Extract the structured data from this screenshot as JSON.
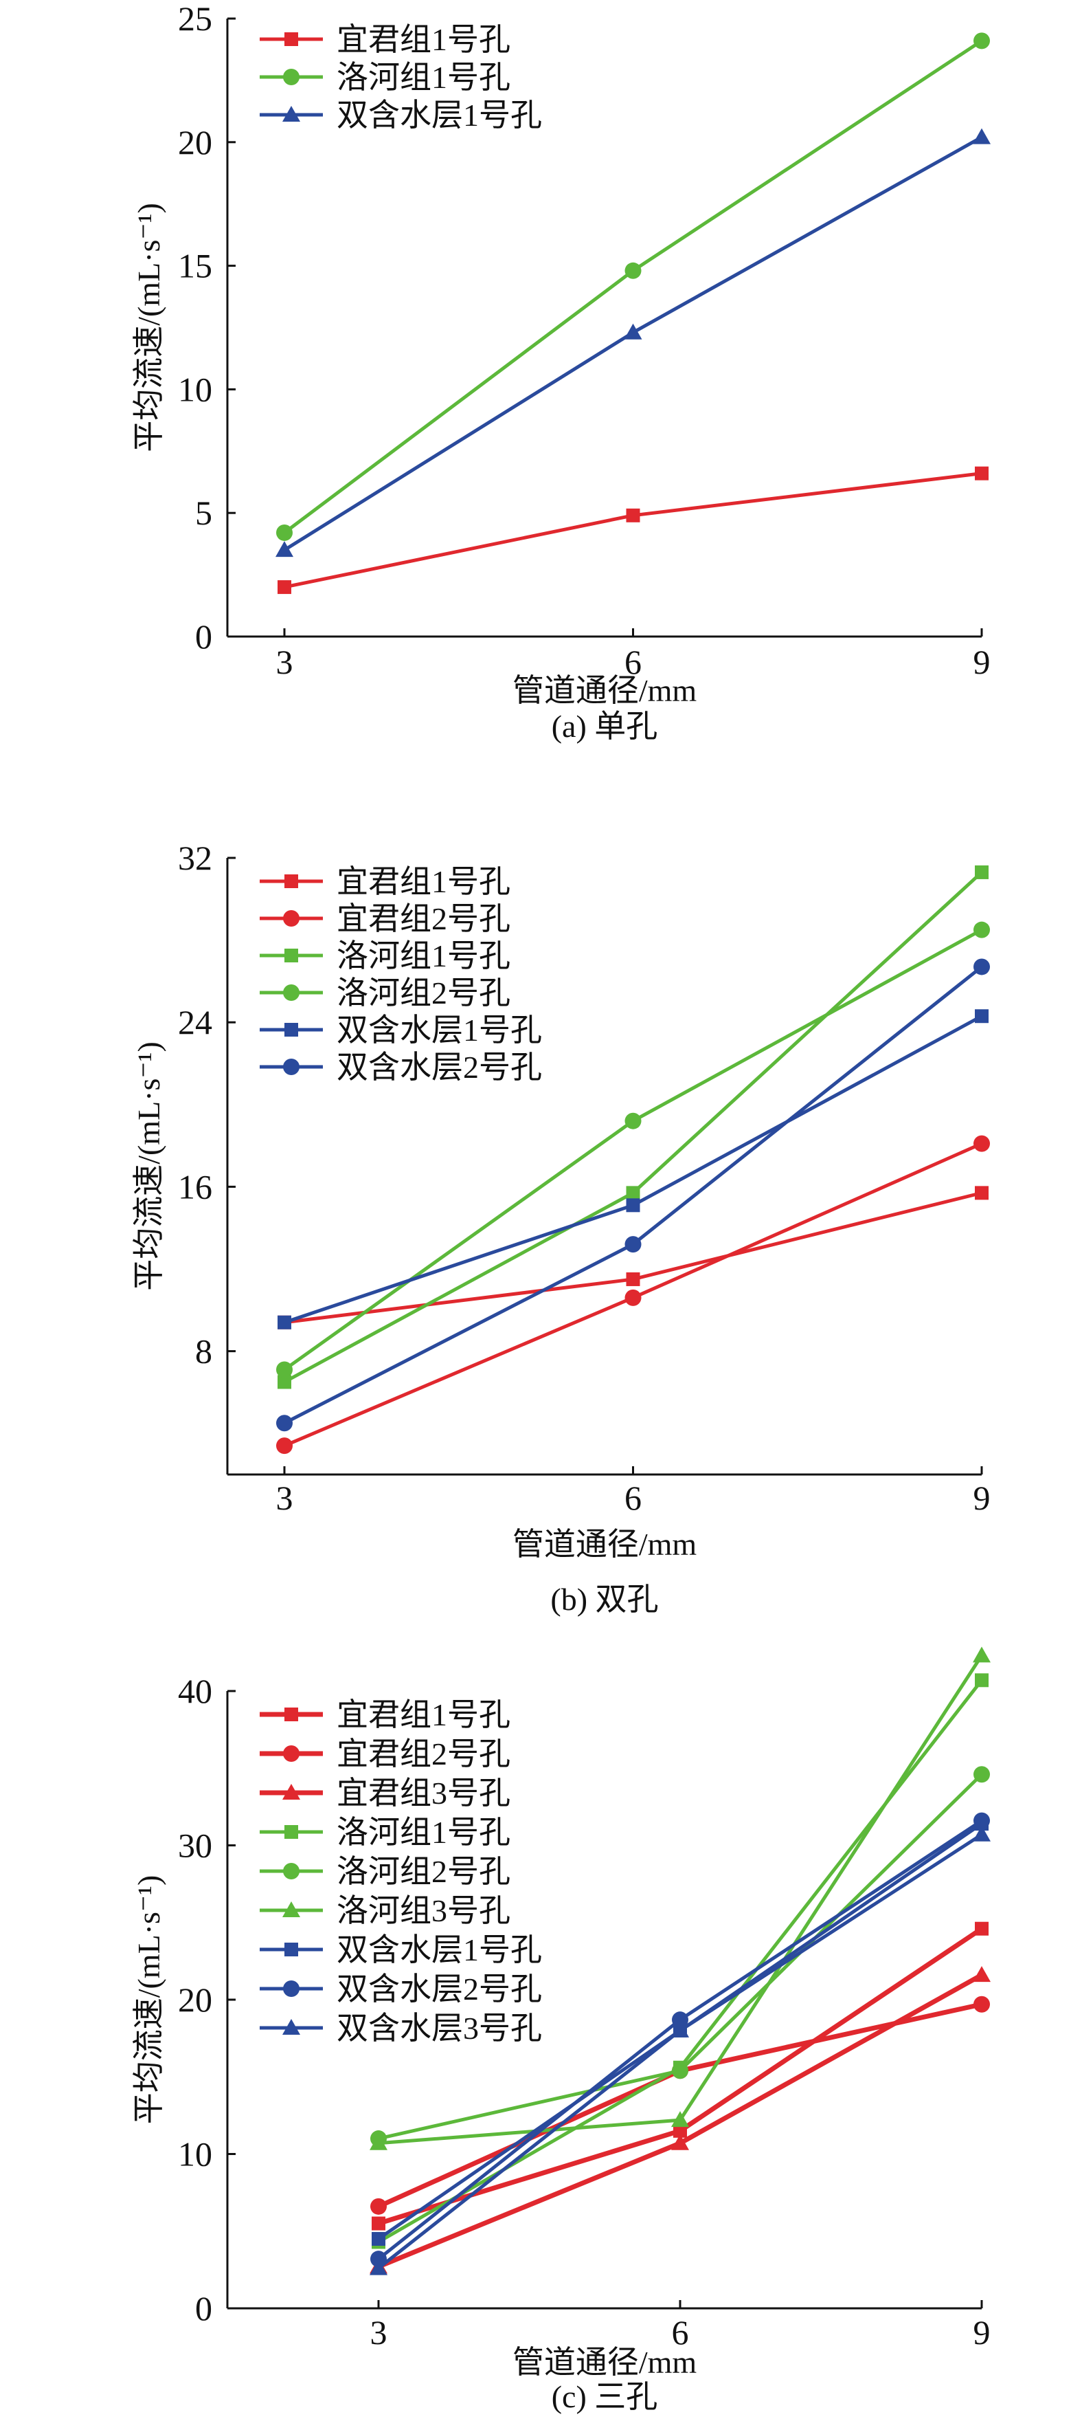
{
  "colors": {
    "red": "#e0282e",
    "green": "#5cb83a",
    "blue": "#2a4a9c"
  },
  "chart_data": [
    {
      "type": "line",
      "caption": "(a) 单孔",
      "xlabel": "管道通径/mm",
      "ylabel": "平均流速/(mL·s⁻¹)",
      "x": [
        3,
        6,
        9
      ],
      "xticks": [
        "3",
        "6",
        "9"
      ],
      "ylim": [
        0,
        25
      ],
      "yticks": [
        0,
        5,
        10,
        15,
        20,
        25
      ],
      "legend_position": "top-left",
      "series": [
        {
          "name": "宜君组1号孔",
          "color": "red",
          "marker": "square",
          "values": [
            2.0,
            4.9,
            6.6
          ]
        },
        {
          "name": "洛河组1号孔",
          "color": "green",
          "marker": "circle",
          "values": [
            4.2,
            14.8,
            24.1
          ]
        },
        {
          "name": "双含水层1号孔",
          "color": "blue",
          "marker": "triangle",
          "values": [
            3.5,
            12.3,
            20.2
          ]
        }
      ]
    },
    {
      "type": "line",
      "caption": "(b) 双孔",
      "xlabel": "管道通径/mm",
      "ylabel": "平均流速/(mL·s⁻¹)",
      "x": [
        3,
        6,
        9
      ],
      "xticks": [
        "3",
        "6",
        "9"
      ],
      "ylim": [
        2,
        32
      ],
      "yticks": [
        8,
        16,
        24,
        32
      ],
      "legend_position": "top-left",
      "series": [
        {
          "name": "宜君组1号孔",
          "color": "red",
          "marker": "square",
          "values": [
            9.4,
            11.5,
            15.7
          ]
        },
        {
          "name": "宜君组2号孔",
          "color": "red",
          "marker": "circle",
          "values": [
            3.4,
            10.6,
            18.1
          ]
        },
        {
          "name": "洛河组1号孔",
          "color": "green",
          "marker": "square",
          "values": [
            6.5,
            15.7,
            31.3
          ]
        },
        {
          "name": "洛河组2号孔",
          "color": "green",
          "marker": "circle",
          "values": [
            7.1,
            19.2,
            28.5
          ]
        },
        {
          "name": "双含水层1号孔",
          "color": "blue",
          "marker": "square",
          "values": [
            9.4,
            15.1,
            24.3
          ]
        },
        {
          "name": "双含水层2号孔",
          "color": "blue",
          "marker": "circle",
          "values": [
            4.5,
            13.2,
            26.7
          ]
        }
      ]
    },
    {
      "type": "line",
      "caption": "(c) 三孔",
      "xlabel": "管道通径/mm",
      "ylabel": "平均流速/(mL·s⁻¹)",
      "x": [
        3,
        6,
        9
      ],
      "xticks": [
        "3",
        "6",
        "9"
      ],
      "ylim": [
        0,
        40
      ],
      "yticks": [
        0,
        10,
        20,
        30,
        40
      ],
      "legend_position": "top-left",
      "series": [
        {
          "name": "宜君组1号孔",
          "color": "red",
          "marker": "square",
          "values": [
            5.5,
            11.5,
            24.6
          ]
        },
        {
          "name": "宜君组2号孔",
          "color": "red",
          "marker": "circle",
          "values": [
            6.6,
            15.4,
            19.7
          ]
        },
        {
          "name": "宜君组3号孔",
          "color": "red",
          "marker": "triangle",
          "values": [
            2.7,
            10.7,
            21.6
          ]
        },
        {
          "name": "洛河组1号孔",
          "color": "green",
          "marker": "square",
          "values": [
            4.3,
            15.6,
            40.7
          ]
        },
        {
          "name": "洛河组2号孔",
          "color": "green",
          "marker": "circle",
          "values": [
            11.0,
            15.4,
            34.6
          ]
        },
        {
          "name": "洛河组3号孔",
          "color": "green",
          "marker": "triangle",
          "values": [
            10.7,
            12.2,
            42.3
          ]
        },
        {
          "name": "双含水层1号孔",
          "color": "blue",
          "marker": "square",
          "values": [
            4.5,
            18.0,
            31.4
          ]
        },
        {
          "name": "双含水层2号孔",
          "color": "blue",
          "marker": "circle",
          "values": [
            3.2,
            18.7,
            31.6
          ]
        },
        {
          "name": "双含水层3号孔",
          "color": "blue",
          "marker": "triangle",
          "values": [
            2.6,
            18.0,
            30.7
          ]
        }
      ]
    }
  ]
}
